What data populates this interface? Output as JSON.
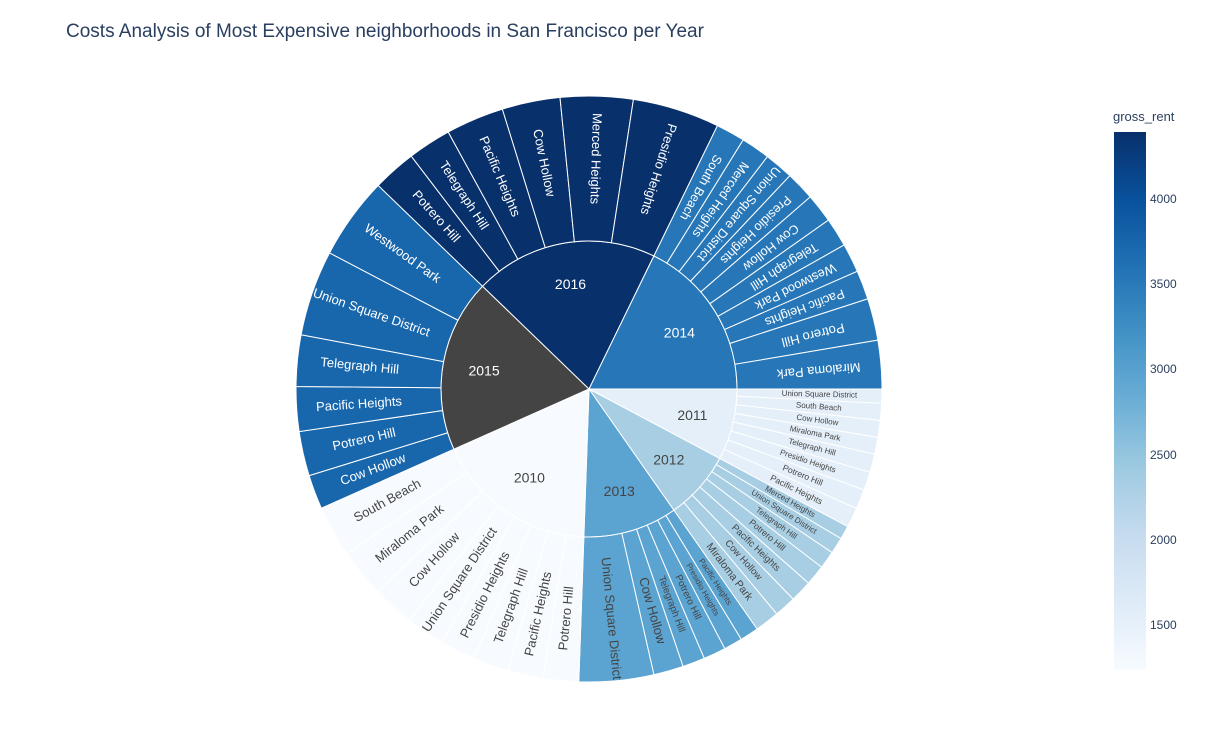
{
  "title": "Costs Analysis of Most Expensive neighborhoods in San Francisco per Year",
  "colors": {
    "text": "#2a3f5f",
    "background": "#ffffff",
    "root_year_2015": "#444444"
  },
  "colorbar": {
    "title": "gross_rent",
    "min": 1239,
    "max": 4390,
    "ticks": [
      {
        "value": 4000,
        "label": "4000"
      },
      {
        "value": 3500,
        "label": "3500"
      },
      {
        "value": 3000,
        "label": "3000"
      },
      {
        "value": 2500,
        "label": "2500"
      },
      {
        "value": 2000,
        "label": "2000"
      },
      {
        "value": 1500,
        "label": "1500"
      }
    ],
    "colorscale": [
      "#f7fbff",
      "#deebf7",
      "#c6dbef",
      "#9ecae1",
      "#6baed6",
      "#4292c6",
      "#2171b5",
      "#08519c",
      "#08306b"
    ]
  },
  "chart_data": {
    "type": "sunburst",
    "color_by": "gross_rent",
    "years": [
      {
        "label": "2011",
        "gross_rent": 1530,
        "children": [
          "Union Square District",
          "South Beach",
          "Cow Hollow",
          "Miraloma Park",
          "Telegraph Hill",
          "Presidio Heights",
          "Potrero Hill",
          "Pacific Heights"
        ]
      },
      {
        "label": "2012",
        "gross_rent": 2324,
        "children": [
          "Merced Heights",
          "Union Square District",
          "Telegraph Hill",
          "Potrero Hill",
          "Pacific Heights",
          "Cow Hollow",
          "Miraloma Park"
        ]
      },
      {
        "label": "2013",
        "gross_rent": 2971,
        "children": [
          "Pacific Heights",
          "Presidio Heights",
          "Potrero Hill",
          "Telegraph Hill",
          "Cow Hollow",
          "Union Square District"
        ]
      },
      {
        "label": "2010",
        "gross_rent": 1239,
        "children": [
          "Potrero Hill",
          "Pacific Heights",
          "Telegraph Hill",
          "Presidio Heights",
          "Union Square District",
          "Cow Hollow",
          "Miraloma Park",
          "South Beach"
        ]
      },
      {
        "label": "2015",
        "gross_rent": 3739,
        "children": [
          "Cow Hollow",
          "Potrero Hill",
          "Pacific Heights",
          "Telegraph Hill",
          "Union Square District",
          "Westwood Park"
        ]
      },
      {
        "label": "2016",
        "gross_rent": 4390,
        "children": [
          "Potrero Hill",
          "Telegraph Hill",
          "Pacific Heights",
          "Cow Hollow",
          "Merced Heights",
          "Presidio Heights"
        ]
      },
      {
        "label": "2014",
        "gross_rent": 3528,
        "children": [
          "South Beach",
          "Merced Heights",
          "Union Square District",
          "Presidio Heights",
          "Cow Hollow",
          "Telegraph Hill",
          "Westwood Park",
          "Pacific Heights",
          "Potrero Hill",
          "Miraloma Park"
        ]
      }
    ]
  }
}
